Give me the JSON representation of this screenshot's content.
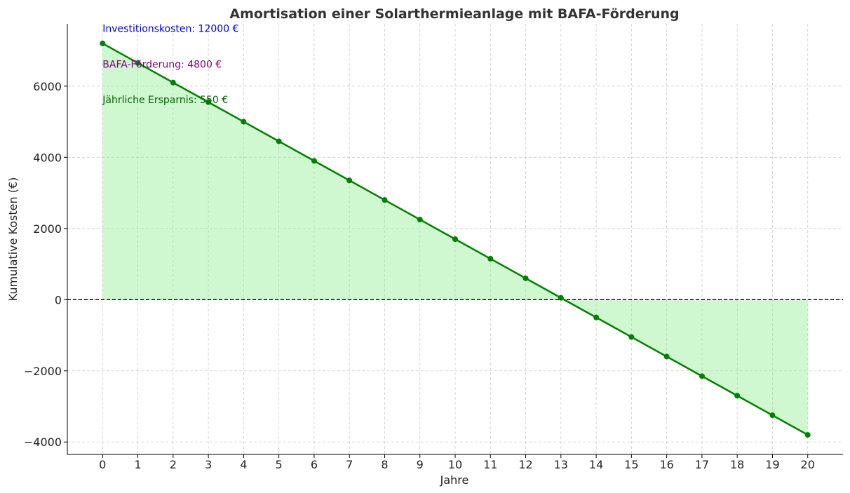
{
  "chart_data": {
    "type": "line",
    "title": "Amortisation einer Solarthermieanlage mit BAFA-Förderung",
    "xlabel": "Jahre",
    "ylabel": "Kumulative Kosten (€)",
    "x": [
      0,
      1,
      2,
      3,
      4,
      5,
      6,
      7,
      8,
      9,
      10,
      11,
      12,
      13,
      14,
      15,
      16,
      17,
      18,
      19,
      20
    ],
    "series": [
      {
        "values": [
          7200,
          6650,
          6100,
          5550,
          5000,
          4450,
          3900,
          3350,
          2800,
          2250,
          1700,
          1150,
          600,
          50,
          -500,
          -1050,
          -1600,
          -2150,
          -2700,
          -3250,
          -3800
        ],
        "color": "#008000",
        "fill_color": "#90ee90",
        "marker": "circle"
      }
    ],
    "xlim": [
      -1,
      21
    ],
    "ylim": [
      -4350,
      7750
    ],
    "xticks": [
      0,
      1,
      2,
      3,
      4,
      5,
      6,
      7,
      8,
      9,
      10,
      11,
      12,
      13,
      14,
      15,
      16,
      17,
      18,
      19,
      20
    ],
    "yticks": [
      -4000,
      -2000,
      0,
      2000,
      4000,
      6000
    ],
    "ytick_labels": [
      "−4000",
      "−2000",
      "0",
      "2000",
      "4000",
      "6000"
    ],
    "grid": true,
    "reference_line": {
      "y": 0,
      "style": "dashed",
      "color": "#000000"
    },
    "annotations": [
      {
        "text": "Investitionskosten: 12000 €",
        "x": 0,
        "y": 7600,
        "color": "#0000cd"
      },
      {
        "text": "BAFA-Förderung: 4800 €",
        "x": 0,
        "y": 6600,
        "color": "#800080"
      },
      {
        "text": "Jährliche Ersparnis: 550 €",
        "x": 0,
        "y": 5600,
        "color": "#006400"
      }
    ]
  }
}
